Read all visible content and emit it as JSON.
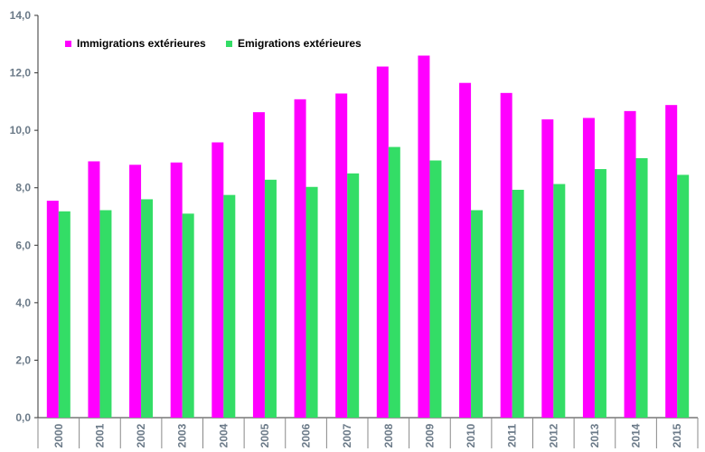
{
  "chart_data": {
    "type": "bar",
    "title": "",
    "xlabel": "",
    "ylabel": "",
    "ylim": [
      0,
      14
    ],
    "y_ticks": [
      "0,0",
      "2,0",
      "4,0",
      "6,0",
      "8,0",
      "10,0",
      "12,0",
      "14,0"
    ],
    "categories": [
      "2000",
      "2001",
      "2002",
      "2003",
      "2004",
      "2005",
      "2006",
      "2007",
      "2008",
      "2009",
      "2010",
      "2011",
      "2012",
      "2013",
      "2014",
      "2015"
    ],
    "series": [
      {
        "name": "Immigrations extérieures",
        "color": "#ff00ff",
        "values": [
          7.55,
          8.92,
          8.8,
          8.88,
          9.58,
          10.63,
          11.08,
          11.28,
          12.22,
          12.6,
          11.65,
          11.3,
          10.38,
          10.43,
          10.67,
          10.88
        ]
      },
      {
        "name": "Emigrations extérieures",
        "color": "#33dd66",
        "values": [
          7.18,
          7.22,
          7.6,
          7.1,
          7.75,
          8.28,
          8.03,
          8.5,
          9.42,
          8.95,
          7.22,
          7.93,
          8.13,
          8.65,
          9.03,
          8.45
        ]
      }
    ],
    "grid": false,
    "legend_position": "top-left"
  }
}
